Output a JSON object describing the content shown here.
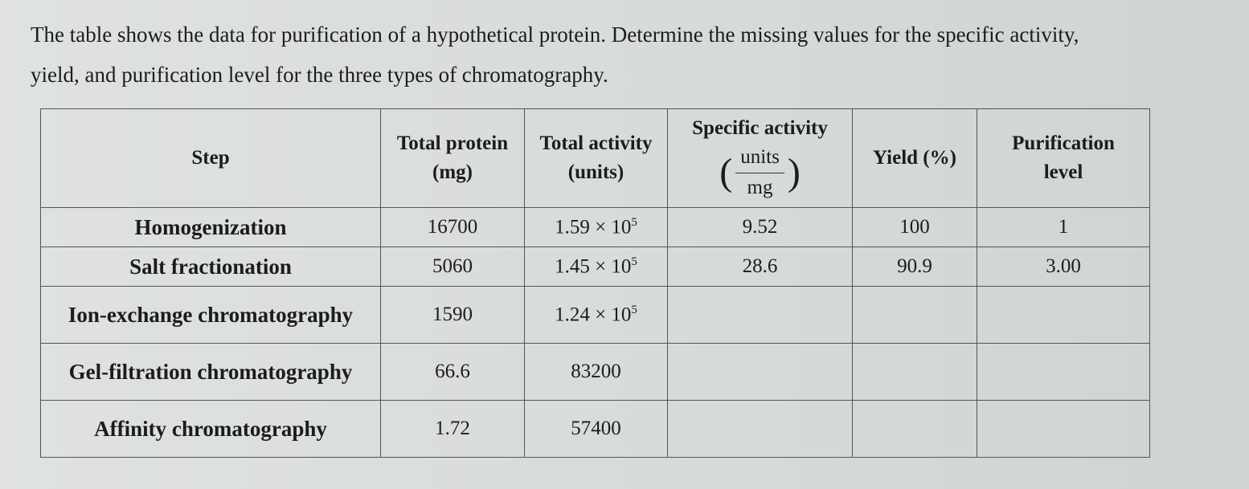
{
  "question": {
    "lines": [
      "The table shows the data for purification of a hypothetical protein. Determine the missing values for the specific activity,",
      "yield, and purification level for the three types of chromatography."
    ]
  },
  "table": {
    "headers": [
      {
        "title": "Step"
      },
      {
        "title": "Total protein",
        "unit": "(mg)"
      },
      {
        "title": "Total activity",
        "unit": "(units)"
      },
      {
        "title": "Specific activity",
        "unit_num": "units",
        "unit_den": "mg"
      },
      {
        "title": "Yield (%)"
      },
      {
        "title": "Purification",
        "unit": "level"
      }
    ],
    "rows": [
      [
        "Homogenization",
        "16700",
        {
          "base": "1.59 × 10",
          "exp": "5"
        },
        "9.52",
        "100",
        "1"
      ],
      [
        "Salt fractionation",
        "5060",
        {
          "base": "1.45 × 10",
          "exp": "5"
        },
        "28.6",
        "90.9",
        "3.00"
      ],
      [
        "Ion-exchange chromatography",
        "1590",
        {
          "base": "1.24 × 10",
          "exp": "5"
        }
      ],
      [
        "Gel-filtration chromatography",
        "66.6",
        "83200"
      ],
      [
        "Affinity chromatography",
        "1.72",
        "57400"
      ]
    ]
  }
}
